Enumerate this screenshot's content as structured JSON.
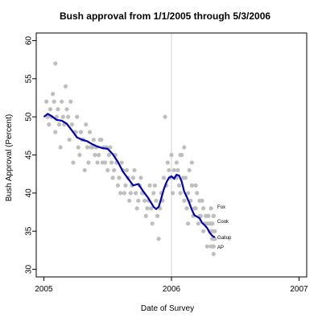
{
  "chart_data": {
    "type": "scatter",
    "title": "Bush approval from 1/1/2005 through 5/3/2006",
    "xlabel": "Date of Survey",
    "ylabel": "Bush Approval (Percent)",
    "xlim": [
      2004.94,
      2007.06
    ],
    "ylim": [
      29,
      61
    ],
    "xticks": [
      2005,
      2006,
      2007
    ],
    "xtick_labels": [
      "2005",
      "2006",
      "2007"
    ],
    "yticks": [
      30,
      35,
      40,
      45,
      50,
      55,
      60
    ],
    "ytick_labels": [
      "30",
      "35",
      "40",
      "45",
      "50",
      "55",
      "60"
    ],
    "reference_line_x": 2006,
    "grid": false,
    "legend": "none",
    "colors": {
      "points": "#bebebe",
      "trend": "#0000b4",
      "reference": "#d3d3d3"
    },
    "points": {
      "x": [
        2005.02,
        2005.03,
        2005.04,
        2005.05,
        2005.06,
        2005.07,
        2005.08,
        2005.09,
        2005.09,
        2005.1,
        2005.11,
        2005.12,
        2005.13,
        2005.14,
        2005.15,
        2005.16,
        2005.17,
        2005.18,
        2005.19,
        2005.2,
        2005.21,
        2005.22,
        2005.23,
        2005.24,
        2005.25,
        2005.26,
        2005.27,
        2005.28,
        2005.29,
        2005.3,
        2005.31,
        2005.32,
        2005.33,
        2005.34,
        2005.35,
        2005.36,
        2005.37,
        2005.38,
        2005.39,
        2005.4,
        2005.41,
        2005.42,
        2005.43,
        2005.44,
        2005.45,
        2005.46,
        2005.47,
        2005.48,
        2005.49,
        2005.5,
        2005.51,
        2005.52,
        2005.53,
        2005.54,
        2005.55,
        2005.56,
        2005.57,
        2005.58,
        2005.59,
        2005.6,
        2005.61,
        2005.62,
        2005.63,
        2005.64,
        2005.65,
        2005.66,
        2005.67,
        2005.68,
        2005.69,
        2005.7,
        2005.71,
        2005.72,
        2005.73,
        2005.74,
        2005.75,
        2005.76,
        2005.77,
        2005.78,
        2005.79,
        2005.8,
        2005.81,
        2005.82,
        2005.83,
        2005.84,
        2005.85,
        2005.86,
        2005.87,
        2005.88,
        2005.89,
        2005.9,
        2005.91,
        2005.92,
        2005.93,
        2005.94,
        2005.95,
        2005.96,
        2005.97,
        2005.98,
        2005.99,
        2006.0,
        2006.01,
        2006.02,
        2006.03,
        2006.04,
        2006.05,
        2006.06,
        2006.07,
        2006.08,
        2006.09,
        2006.1,
        2006.11,
        2006.12,
        2006.13,
        2006.14,
        2006.15,
        2006.16,
        2006.17,
        2006.18,
        2006.19,
        2006.2,
        2006.21,
        2006.22,
        2006.23,
        2006.24,
        2006.25,
        2006.26,
        2006.27,
        2006.28,
        2006.29,
        2006.3,
        2006.31,
        2006.32,
        2006.33,
        2006.34,
        2006.04,
        2006.07,
        2006.1,
        2006.13,
        2006.16,
        2006.19,
        2006.22,
        2006.25,
        2006.28,
        2006.31,
        2006.34,
        2006.33,
        2006.32,
        2006.33,
        2006.34,
        2006.33,
        2006.32,
        2006.33,
        2006.31
      ],
      "y": [
        52,
        50,
        49,
        51,
        50,
        53,
        52,
        48,
        57,
        50,
        51,
        49,
        46,
        52,
        50,
        49,
        54,
        51,
        50,
        47,
        52,
        49,
        44,
        48,
        48,
        50,
        46,
        45,
        48,
        47,
        47,
        43,
        49,
        46,
        44,
        48,
        46,
        46,
        47,
        45,
        46,
        44,
        45,
        47,
        47,
        44,
        46,
        44,
        46,
        43,
        45,
        46,
        44,
        42,
        43,
        45,
        44,
        41,
        42,
        40,
        44,
        43,
        40,
        41,
        43,
        42,
        39,
        40,
        41,
        42,
        43,
        40,
        38,
        39,
        41,
        42,
        40,
        40,
        39,
        37,
        38,
        39,
        41,
        38,
        36,
        40,
        41,
        39,
        37,
        34,
        38,
        40,
        39,
        42,
        50,
        41,
        44,
        43,
        42,
        45,
        40,
        43,
        42,
        44,
        43,
        41,
        40,
        45,
        42,
        46,
        42,
        38,
        40,
        43,
        39,
        41,
        37,
        38,
        41,
        40,
        36,
        39,
        37,
        39,
        38,
        36,
        37,
        33,
        37,
        36,
        35,
        34,
        33,
        35,
        42,
        45,
        39,
        36,
        44,
        38,
        37,
        35,
        36,
        38,
        34,
        37,
        36,
        32,
        34,
        37,
        35,
        34,
        33
      ],
      "xlabel_note": ""
    },
    "series": [
      {
        "x": [
          2005.0,
          2005.03,
          2005.06,
          2005.1,
          2005.14,
          2005.18,
          2005.22,
          2005.26,
          2005.3,
          2005.34,
          2005.38,
          2005.42,
          2005.46,
          2005.5,
          2005.54,
          2005.58,
          2005.62,
          2005.66,
          2005.7,
          2005.74,
          2005.78,
          2005.82,
          2005.86,
          2005.88,
          2005.9,
          2005.92,
          2005.94,
          2005.96,
          2005.98,
          2006.0,
          2006.02,
          2006.04,
          2006.06,
          2006.08,
          2006.1,
          2006.12,
          2006.14,
          2006.16,
          2006.18,
          2006.2,
          2006.22,
          2006.24,
          2006.26,
          2006.28,
          2006.3,
          2006.32,
          2006.34
        ],
        "y": [
          50.0,
          50.4,
          50.1,
          49.6,
          49.5,
          49.1,
          48.2,
          47.3,
          47.0,
          46.8,
          46.4,
          46.1,
          45.9,
          45.8,
          45.1,
          44.1,
          42.8,
          41.9,
          41.0,
          41.2,
          40.2,
          39.3,
          38.2,
          37.9,
          38.2,
          39.3,
          40.5,
          41.4,
          42.0,
          42.2,
          41.9,
          42.4,
          42.3,
          41.5,
          40.2,
          39.5,
          38.7,
          37.8,
          37.1,
          36.9,
          36.7,
          36.1,
          35.8,
          35.4,
          34.8,
          34.4,
          34.2
        ]
      }
    ],
    "annotations": [
      {
        "text": "Fox",
        "x": 2006.36,
        "y": 38.2
      },
      {
        "text": "Cook",
        "x": 2006.36,
        "y": 36.3
      },
      {
        "text": "Gallup",
        "x": 2006.36,
        "y": 34.2
      },
      {
        "text": "AP",
        "x": 2006.36,
        "y": 32.9
      }
    ]
  }
}
